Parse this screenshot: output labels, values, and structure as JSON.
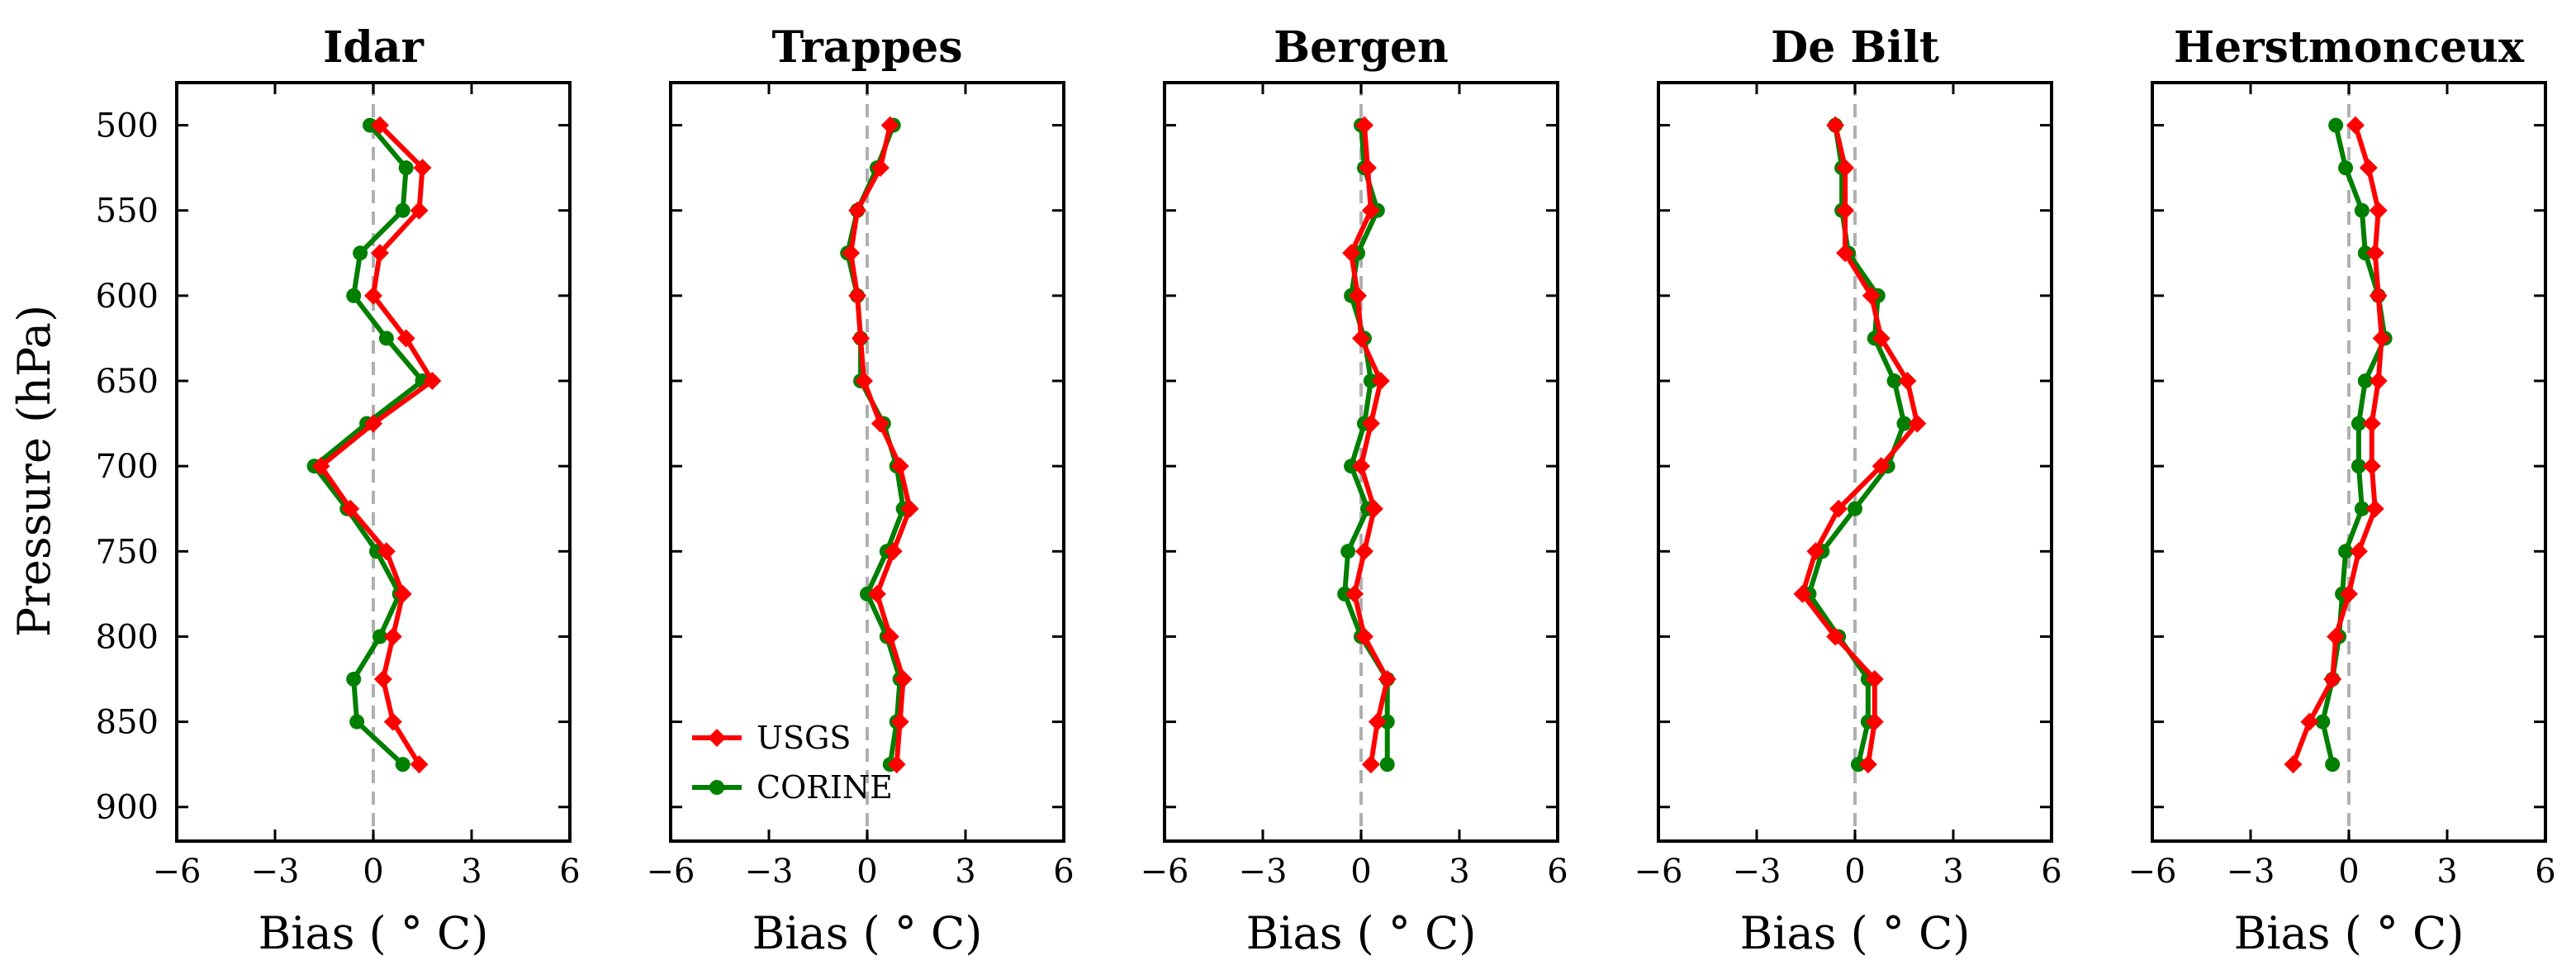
{
  "chart_data": {
    "type": "line",
    "ylabel": "Pressure (hPa)",
    "xlabel": "Bias ( $^\\circ$C)",
    "xlabel_display": "Bias (  ° C)",
    "xlim": [
      -6,
      6
    ],
    "ylim": [
      920,
      475
    ],
    "xticks": [
      -6,
      -3,
      0,
      3,
      6
    ],
    "xtick_labels": [
      "−6",
      "−3",
      "0",
      "3",
      "6"
    ],
    "yticks": [
      500,
      550,
      600,
      650,
      700,
      750,
      800,
      850,
      900
    ],
    "ytick_labels": [
      "500",
      "550",
      "600",
      "650",
      "700",
      "750",
      "800",
      "850",
      "900"
    ],
    "pressure_levels": [
      500,
      525,
      550,
      575,
      600,
      625,
      650,
      675,
      700,
      725,
      750,
      775,
      800,
      825,
      850,
      875
    ],
    "series_styles": {
      "USGS": {
        "color": "#ff0000",
        "marker": "diamond"
      },
      "CORINE": {
        "color": "#007f00",
        "marker": "circle"
      }
    },
    "legend": {
      "location": "lower-left",
      "panel": "Trappes",
      "entries": [
        "USGS",
        "CORINE"
      ]
    },
    "panels": [
      {
        "title": "Idar",
        "series": [
          {
            "name": "USGS",
            "values": [
              0.2,
              1.5,
              1.4,
              0.2,
              0.0,
              1.0,
              1.8,
              0.0,
              -1.6,
              -0.7,
              0.4,
              0.9,
              0.6,
              0.3,
              0.6,
              1.4
            ]
          },
          {
            "name": "CORINE",
            "values": [
              -0.1,
              1.0,
              0.9,
              -0.4,
              -0.6,
              0.4,
              1.5,
              -0.2,
              -1.8,
              -0.8,
              0.1,
              0.8,
              0.2,
              -0.6,
              -0.5,
              0.9
            ]
          }
        ]
      },
      {
        "title": "Trappes",
        "series": [
          {
            "name": "USGS",
            "values": [
              0.7,
              0.4,
              -0.3,
              -0.5,
              -0.3,
              -0.2,
              -0.1,
              0.4,
              1.0,
              1.3,
              0.8,
              0.3,
              0.7,
              1.1,
              1.0,
              0.9
            ]
          },
          {
            "name": "CORINE",
            "values": [
              0.8,
              0.3,
              -0.3,
              -0.6,
              -0.3,
              -0.2,
              -0.2,
              0.5,
              0.9,
              1.1,
              0.6,
              0.0,
              0.6,
              1.0,
              0.9,
              0.7
            ]
          }
        ]
      },
      {
        "title": "Bergen",
        "series": [
          {
            "name": "USGS",
            "values": [
              0.1,
              0.2,
              0.3,
              -0.3,
              -0.1,
              0.0,
              0.6,
              0.3,
              0.0,
              0.4,
              0.1,
              -0.2,
              0.1,
              0.8,
              0.5,
              0.3
            ]
          },
          {
            "name": "CORINE",
            "values": [
              0.0,
              0.1,
              0.5,
              -0.1,
              -0.3,
              0.1,
              0.3,
              0.1,
              -0.3,
              0.2,
              -0.4,
              -0.5,
              0.0,
              0.8,
              0.8,
              0.8
            ]
          }
        ]
      },
      {
        "title": "De Bilt",
        "series": [
          {
            "name": "USGS",
            "values": [
              -0.6,
              -0.3,
              -0.3,
              -0.3,
              0.5,
              0.8,
              1.6,
              1.9,
              0.8,
              -0.5,
              -1.2,
              -1.6,
              -0.6,
              0.6,
              0.6,
              0.4
            ]
          },
          {
            "name": "CORINE",
            "values": [
              -0.6,
              -0.4,
              -0.4,
              -0.2,
              0.7,
              0.6,
              1.2,
              1.5,
              1.0,
              0.0,
              -1.0,
              -1.4,
              -0.5,
              0.4,
              0.4,
              0.1
            ]
          }
        ]
      },
      {
        "title": "Herstmonceux",
        "series": [
          {
            "name": "USGS",
            "values": [
              0.2,
              0.6,
              0.9,
              0.8,
              0.9,
              1.0,
              0.9,
              0.7,
              0.7,
              0.8,
              0.3,
              0.0,
              -0.4,
              -0.5,
              -1.2,
              -1.7
            ]
          },
          {
            "name": "CORINE",
            "values": [
              -0.4,
              -0.1,
              0.4,
              0.5,
              0.9,
              1.1,
              0.5,
              0.3,
              0.3,
              0.4,
              -0.1,
              -0.2,
              -0.3,
              -0.5,
              -0.8,
              -0.5
            ]
          }
        ]
      }
    ]
  }
}
